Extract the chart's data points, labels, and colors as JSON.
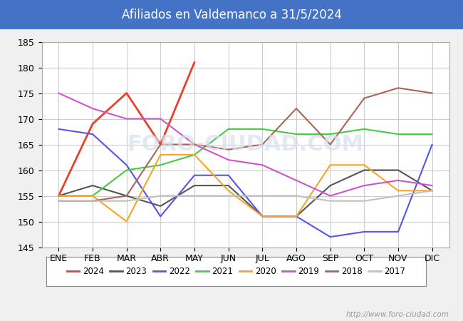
{
  "title": "Afiliados en Valdemanco a 31/5/2024",
  "title_bg": "#4472c4",
  "title_color": "white",
  "months": [
    "ENE",
    "FEB",
    "MAR",
    "ABR",
    "MAY",
    "JUN",
    "JUL",
    "AGO",
    "SEP",
    "OCT",
    "NOV",
    "DIC"
  ],
  "ylim": [
    145,
    185
  ],
  "yticks": [
    145,
    150,
    155,
    160,
    165,
    170,
    175,
    180,
    185
  ],
  "series": {
    "2024": {
      "color": "#e8402a",
      "linewidth": 2.0,
      "values": [
        155,
        169,
        175,
        165,
        181,
        null,
        null,
        null,
        null,
        null,
        null,
        null
      ]
    },
    "2023": {
      "color": "#555555",
      "linewidth": 1.5,
      "values": [
        155,
        157,
        155,
        153,
        157,
        157,
        151,
        151,
        157,
        160,
        160,
        156
      ]
    },
    "2022": {
      "color": "#5555ee",
      "linewidth": 1.5,
      "values": [
        168,
        167,
        161,
        151,
        159,
        159,
        151,
        151,
        147,
        148,
        148,
        165
      ]
    },
    "2021": {
      "color": "#44cc44",
      "linewidth": 1.5,
      "values": [
        155,
        155,
        160,
        161,
        163,
        168,
        168,
        167,
        167,
        168,
        167,
        167
      ]
    },
    "2020": {
      "color": "#f5a623",
      "linewidth": 1.5,
      "values": [
        155,
        155,
        150,
        163,
        163,
        156,
        151,
        151,
        161,
        161,
        156,
        156
      ]
    },
    "2019": {
      "color": "#cc55cc",
      "linewidth": 1.5,
      "values": [
        175,
        172,
        170,
        170,
        165,
        162,
        161,
        158,
        155,
        157,
        158,
        157
      ]
    },
    "2018": {
      "color": "#aa6655",
      "linewidth": 1.5,
      "values": [
        154,
        154,
        155,
        165,
        165,
        164,
        165,
        172,
        165,
        174,
        176,
        175
      ]
    },
    "2017": {
      "color": "#c0c0c0",
      "linewidth": 1.5,
      "values": [
        154,
        154,
        154,
        155,
        155,
        155,
        155,
        155,
        154,
        154,
        155,
        156
      ]
    }
  },
  "legend_order": [
    "2024",
    "2023",
    "2022",
    "2021",
    "2020",
    "2019",
    "2018",
    "2017"
  ],
  "watermark": "http://www.foro-ciudad.com",
  "grid_color": "#cccccc",
  "bg_color": "#f0f0f0",
  "plot_bg": "white",
  "watermark_color": "#999999",
  "foro_ciudad_watermark_color": "#c8d0e0"
}
